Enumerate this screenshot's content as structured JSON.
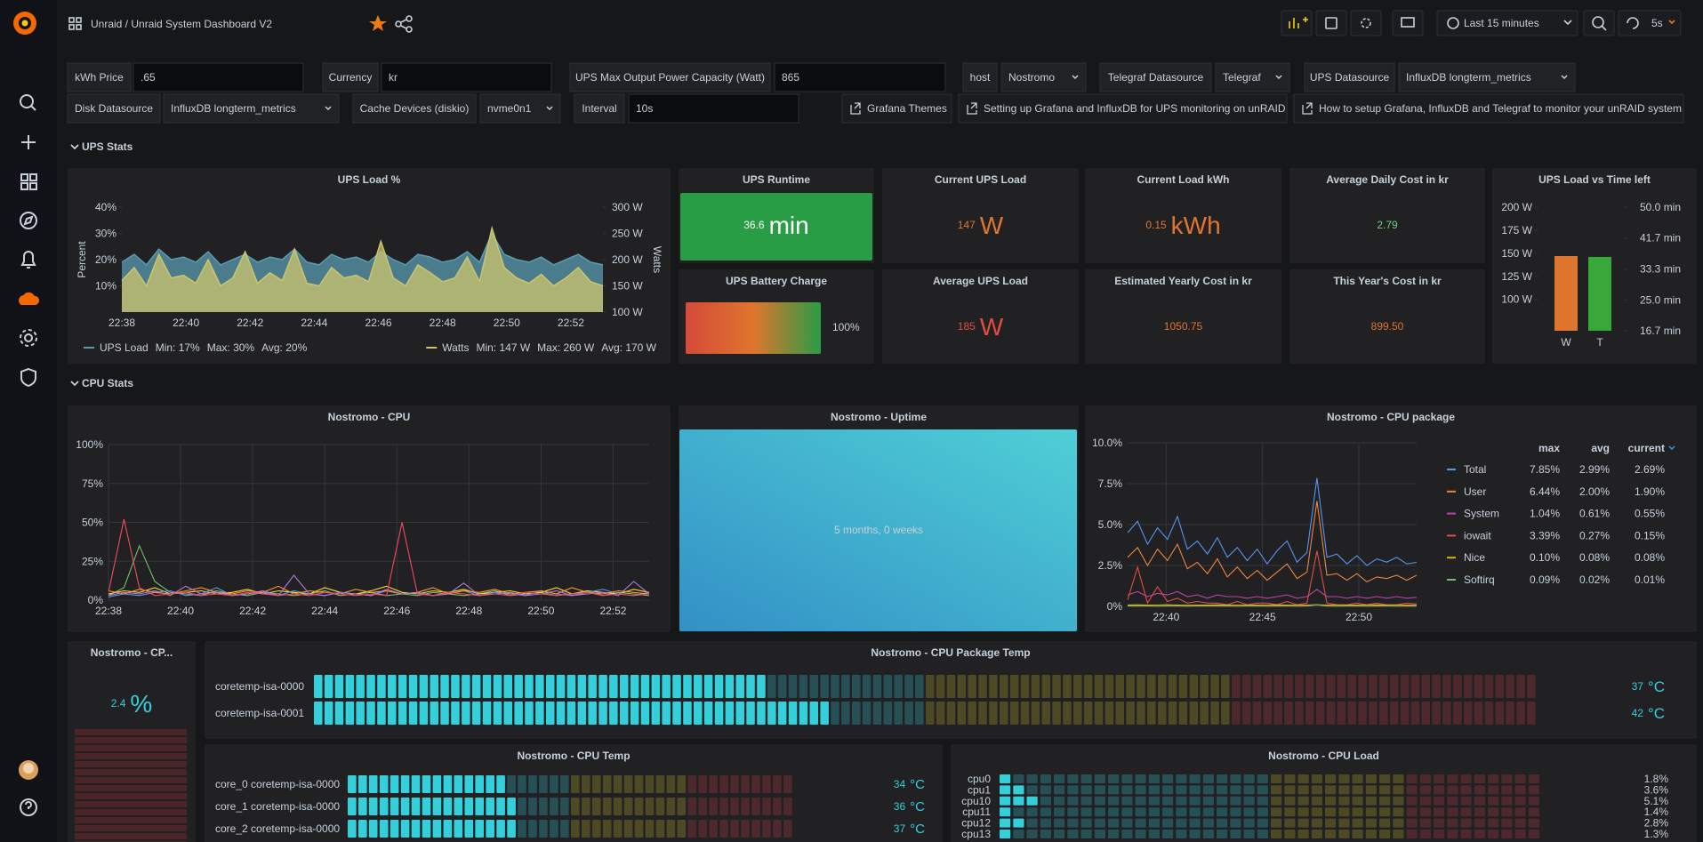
{
  "header": {
    "title": "Unraid / Unraid System Dashboard V2",
    "time_range": "Last 15 minutes",
    "refresh": "5s"
  },
  "variables": [
    {
      "label": "kWh Price",
      "value": ".65"
    },
    {
      "label": "Currency",
      "value": "kr"
    },
    {
      "label": "UPS Max Output Power Capacity (Watt)",
      "value": "865"
    },
    {
      "label": "host",
      "value": "Nostromo"
    },
    {
      "label": "Telegraf Datasource",
      "value": "Telegraf"
    },
    {
      "label": "UPS Datasource",
      "value": "InfluxDB longterm_metrics"
    },
    {
      "label": "Disk Datasource",
      "value": "InfluxDB longterm_metrics"
    },
    {
      "label": "Cache Devices (diskio)",
      "value": "nvme0n1"
    },
    {
      "label": "Interval",
      "value": "10s"
    }
  ],
  "links": [
    "Grafana Themes",
    "Setting up Grafana and InfluxDB for UPS monitoring on unRAID",
    "How to setup Grafana, InfluxDB and Telegraf to monitor your unRAID system"
  ],
  "rows": [
    "UPS Stats",
    "CPU Stats"
  ],
  "ups_load": {
    "type": "line",
    "title": "UPS Load %",
    "y_label": "Percent",
    "y2_label": "Watts",
    "ylim": [
      0,
      40
    ],
    "yticks": [
      {
        "value": 10,
        "label": "10%"
      },
      {
        "value": 20,
        "label": "20%"
      },
      {
        "value": 30,
        "label": "30%"
      },
      {
        "value": 40,
        "label": "40%"
      }
    ],
    "y2lim": [
      100,
      300
    ],
    "y2ticks": [
      {
        "value": 100,
        "label": "100 W"
      },
      {
        "value": 150,
        "label": "150 W"
      },
      {
        "value": 200,
        "label": "200 W"
      },
      {
        "value": 250,
        "label": "250 W"
      },
      {
        "value": 300,
        "label": "300 W"
      }
    ],
    "x_labels": [
      "22:38",
      "22:40",
      "22:42",
      "22:44",
      "22:46",
      "22:48",
      "22:50",
      "22:52"
    ],
    "grid": false,
    "series": [
      {
        "name": "UPS Load",
        "color": "#5a9bb0",
        "stats": [
          "Min: 17%",
          "Max: 30%",
          "Avg: 20%"
        ],
        "values": [
          19,
          22,
          18,
          24,
          20,
          21,
          19,
          23,
          18,
          20,
          22,
          19,
          21,
          20,
          24,
          19,
          18,
          22,
          20,
          21,
          19,
          23,
          20,
          18,
          22,
          21,
          19,
          20,
          23,
          19,
          30,
          22,
          20,
          19,
          21,
          18,
          20,
          22,
          19,
          18
        ]
      },
      {
        "name": "Watts",
        "color": "#cdc56c",
        "axis": "y2",
        "stats": [
          "Min: 147 W",
          "Max: 260 W",
          "Avg: 170 W"
        ],
        "values": [
          160,
          185,
          150,
          210,
          165,
          170,
          155,
          200,
          150,
          165,
          215,
          155,
          175,
          160,
          220,
          155,
          150,
          185,
          165,
          170,
          158,
          235,
          165,
          150,
          190,
          175,
          158,
          165,
          205,
          158,
          260,
          185,
          165,
          155,
          172,
          150,
          165,
          185,
          158,
          150
        ]
      }
    ]
  },
  "stats": [
    {
      "title": "UPS Runtime",
      "value": "36.6",
      "unit": "min",
      "color": "#ffffff",
      "background": "#299c46"
    },
    {
      "title": "Current UPS Load",
      "value": "147",
      "unit": "W",
      "color": "#e0752d"
    },
    {
      "title": "Current Load kWh",
      "value": "0.15",
      "unit": "kWh",
      "color": "#e0752d"
    },
    {
      "title": "Average Daily Cost in kr",
      "value": "2.79",
      "color": "#6ccf7e"
    },
    {
      "title": "Average UPS Load",
      "value": "185",
      "unit": "W",
      "color": "#e24d42"
    },
    {
      "title": "Estimated Yearly Cost in kr",
      "value": "1050.75",
      "color": "#e0752d"
    },
    {
      "title": "This Year's Cost in kr",
      "value": "899.50",
      "color": "#e0752d"
    }
  ],
  "battery": {
    "title": "UPS Battery Charge",
    "value": 100,
    "label": "100%",
    "range": [
      0,
      100
    ]
  },
  "ups_vs_time": {
    "type": "bar",
    "title": "UPS Load vs Time left",
    "categories": [
      "W",
      "T"
    ],
    "values": [
      147,
      36.6
    ],
    "axes": [
      "y",
      "y2"
    ],
    "colors": [
      "#e0752d",
      "#37a839"
    ],
    "ylim": [
      66,
      200
    ],
    "yticks": [
      {
        "value": 100,
        "label": "100 W"
      },
      {
        "value": 125,
        "label": "125 W"
      },
      {
        "value": 150,
        "label": "150 W"
      },
      {
        "value": 175,
        "label": "175 W"
      },
      {
        "value": 200,
        "label": "200 W"
      }
    ],
    "y2lim": [
      16.7,
      50
    ],
    "y2ticks": [
      {
        "value": 16.7,
        "label": "16.7 min"
      },
      {
        "value": 25,
        "label": "25.0 min"
      },
      {
        "value": 33.3,
        "label": "33.3 min"
      },
      {
        "value": 41.7,
        "label": "41.7 min"
      },
      {
        "value": 50,
        "label": "50.0 min"
      }
    ]
  },
  "cpu": {
    "type": "line",
    "title": "Nostromo - CPU",
    "ylim": [
      0,
      100
    ],
    "yticks": [
      {
        "value": 0,
        "label": "0%"
      },
      {
        "value": 25,
        "label": "25%"
      },
      {
        "value": 50,
        "label": "50%"
      },
      {
        "value": 75,
        "label": "75%"
      },
      {
        "value": 100,
        "label": "100%"
      }
    ],
    "x_labels": [
      "22:38",
      "22:40",
      "22:42",
      "22:44",
      "22:46",
      "22:48",
      "22:50",
      "22:52"
    ],
    "grid": true,
    "series": [
      {
        "color": "#73bf69",
        "values": [
          3,
          8,
          35,
          12,
          5,
          4,
          3,
          6,
          4,
          3,
          5,
          4,
          3,
          4,
          6,
          3,
          4,
          5,
          3,
          4,
          3,
          5,
          4,
          3,
          4,
          6,
          3,
          4,
          5,
          3,
          4,
          6,
          3,
          5,
          4,
          3
        ]
      },
      {
        "color": "#fade2a",
        "values": [
          4,
          6,
          5,
          8,
          4,
          5,
          6,
          4,
          5,
          7,
          4,
          6,
          5,
          4,
          8,
          5,
          4,
          6,
          9,
          5,
          4,
          6,
          5,
          7,
          4,
          5,
          6,
          4,
          5,
          8,
          4,
          6,
          5,
          4,
          7,
          5
        ]
      },
      {
        "color": "#5794f2",
        "values": [
          2,
          4,
          3,
          5,
          6,
          3,
          4,
          8,
          3,
          4,
          5,
          3,
          6,
          4,
          3,
          5,
          4,
          3,
          6,
          4,
          5,
          3,
          4,
          6,
          3,
          5,
          4,
          3,
          6,
          4,
          3,
          5,
          7,
          4,
          3,
          5
        ]
      },
      {
        "color": "#ff9830",
        "values": [
          6,
          4,
          7,
          5,
          4,
          6,
          8,
          5,
          4,
          6,
          5,
          9,
          4,
          6,
          5,
          4,
          7,
          5,
          6,
          4,
          5,
          8,
          4,
          6,
          5,
          7,
          4,
          5,
          6,
          4,
          8,
          5,
          4,
          6,
          5,
          4
        ]
      },
      {
        "color": "#b877d9",
        "values": [
          3,
          5,
          4,
          6,
          3,
          9,
          4,
          5,
          3,
          4,
          6,
          3,
          16,
          4,
          3,
          5,
          4,
          3,
          7,
          4,
          5,
          3,
          4,
          11,
          3,
          4,
          5,
          3,
          4,
          6,
          3,
          4,
          5,
          3,
          12,
          4
        ]
      },
      {
        "color": "#f2495c",
        "values": [
          5,
          52,
          8,
          3,
          4,
          5,
          3,
          4,
          3,
          5,
          4,
          3,
          4,
          3,
          5,
          4,
          3,
          4,
          3,
          50,
          4,
          3,
          5,
          4,
          3,
          4,
          3,
          5,
          4,
          3,
          4,
          5,
          3,
          4,
          3,
          4
        ]
      }
    ]
  },
  "uptime": {
    "title": "Nostromo - Uptime",
    "value": "5 months, 0 weeks"
  },
  "cpu_package": {
    "type": "line",
    "title": "Nostromo - CPU package",
    "ylim": [
      0,
      10
    ],
    "yticks": [
      {
        "value": 0,
        "label": "0%"
      },
      {
        "value": 2.5,
        "label": "2.5%"
      },
      {
        "value": 5,
        "label": "5.0%"
      },
      {
        "value": 7.5,
        "label": "7.5%"
      },
      {
        "value": 10,
        "label": "10.0%"
      }
    ],
    "x_labels": [
      "22:40",
      "22:45",
      "22:50"
    ],
    "grid": true,
    "legend_columns": [
      "max",
      "avg",
      "current"
    ],
    "series": [
      {
        "name": "Total",
        "color": "#5794f2",
        "stats": [
          "7.85%",
          "2.99%",
          "2.69%"
        ],
        "values": [
          4.5,
          5.2,
          3.8,
          4.8,
          4.1,
          5.5,
          3.5,
          4.0,
          3.2,
          4.2,
          3.0,
          3.6,
          2.8,
          3.5,
          2.6,
          3.4,
          4.0,
          2.7,
          3.3,
          7.85,
          3.0,
          3.2,
          2.6,
          3.1,
          2.5,
          2.9,
          2.7,
          3.0,
          2.6,
          2.69
        ]
      },
      {
        "name": "User",
        "color": "#ef843c",
        "stats": [
          "6.44%",
          "2.00%",
          "1.90%"
        ],
        "values": [
          3.0,
          3.6,
          2.5,
          3.5,
          2.8,
          3.8,
          2.3,
          2.7,
          2.0,
          2.9,
          1.8,
          2.4,
          1.7,
          2.2,
          1.6,
          2.1,
          2.6,
          1.7,
          2.1,
          6.44,
          1.9,
          2.0,
          1.6,
          2.0,
          1.5,
          1.8,
          1.7,
          1.9,
          1.6,
          1.9
        ]
      },
      {
        "name": "System",
        "color": "#ba43a9",
        "stats": [
          "1.04%",
          "0.61%",
          "0.55%"
        ],
        "values": [
          0.7,
          0.9,
          0.6,
          0.8,
          0.7,
          0.9,
          0.6,
          0.7,
          0.5,
          0.7,
          0.6,
          0.6,
          0.5,
          0.6,
          0.5,
          0.6,
          0.7,
          0.5,
          0.6,
          1.04,
          0.6,
          0.6,
          0.5,
          0.6,
          0.5,
          0.6,
          0.5,
          0.6,
          0.5,
          0.55
        ]
      },
      {
        "name": "iowait",
        "color": "#e24d42",
        "stats": [
          "3.39%",
          "0.27%",
          "0.15%"
        ],
        "values": [
          0.4,
          2.4,
          0.2,
          1.2,
          0.3,
          0.5,
          0.2,
          0.3,
          0.2,
          0.2,
          0.1,
          0.3,
          0.1,
          0.2,
          0.2,
          0.1,
          0.3,
          0.1,
          0.2,
          3.39,
          0.2,
          0.1,
          0.1,
          0.2,
          0.1,
          0.2,
          0.1,
          0.1,
          0.2,
          0.15
        ]
      },
      {
        "name": "Nice",
        "color": "#e5ac0e",
        "stats": [
          "0.10%",
          "0.08%",
          "0.08%"
        ],
        "values": [
          0.08,
          0.09,
          0.08,
          0.08,
          0.1,
          0.08,
          0.07,
          0.08,
          0.08,
          0.09,
          0.08,
          0.08,
          0.07,
          0.08,
          0.08,
          0.09,
          0.08,
          0.08,
          0.08,
          0.1,
          0.08,
          0.08,
          0.07,
          0.08,
          0.08,
          0.09,
          0.08,
          0.08,
          0.08,
          0.08
        ]
      },
      {
        "name": "Softirq",
        "color": "#7eb26d",
        "stats": [
          "0.09%",
          "0.02%",
          "0.01%"
        ],
        "values": [
          0.02,
          0.03,
          0.02,
          0.01,
          0.02,
          0.02,
          0.01,
          0.02,
          0.02,
          0.03,
          0.02,
          0.01,
          0.02,
          0.02,
          0.01,
          0.02,
          0.02,
          0.01,
          0.02,
          0.09,
          0.02,
          0.01,
          0.02,
          0.02,
          0.01,
          0.02,
          0.02,
          0.01,
          0.02,
          0.01
        ]
      }
    ]
  },
  "cpu_percent": {
    "title": "Nostromo - CP...",
    "value": "2.4",
    "unit": "%"
  },
  "package_temp": {
    "title": "Nostromo - CPU Package Temp",
    "range": [
      0,
      100
    ],
    "unit": "°C",
    "thresholds": [
      {
        "value": 0,
        "color": "#33d0dc"
      },
      {
        "value": 50,
        "color": "#c9b52a"
      },
      {
        "value": 75,
        "color": "#c4404a"
      }
    ],
    "items": [
      {
        "name": "coretemp-isa-0000",
        "value": 37
      },
      {
        "name": "coretemp-isa-0001",
        "value": 42
      }
    ]
  },
  "cpu_temp": {
    "title": "Nostromo - CPU Temp",
    "range": [
      0,
      100
    ],
    "unit": "°C",
    "thresholds": [
      {
        "value": 0,
        "color": "#33d0dc"
      },
      {
        "value": 50,
        "color": "#c9b52a"
      },
      {
        "value": 75,
        "color": "#c4404a"
      }
    ],
    "items": [
      {
        "name": "core_0 coretemp-isa-0000",
        "value": 34
      },
      {
        "name": "core_1 coretemp-isa-0000",
        "value": 36
      },
      {
        "name": "core_2 coretemp-isa-0000",
        "value": 37
      }
    ]
  },
  "cpu_load": {
    "title": "Nostromo - CPU Load",
    "range": [
      0,
      100
    ],
    "thresholds": [
      {
        "value": 0,
        "color": "#33d0dc"
      },
      {
        "value": 50,
        "color": "#c9b52a"
      },
      {
        "value": 75,
        "color": "#c4404a"
      }
    ],
    "items": [
      {
        "name": "cpu0",
        "value": 1.8,
        "label": "1.8%"
      },
      {
        "name": "cpu1",
        "value": 3.6,
        "label": "3.6%"
      },
      {
        "name": "cpu10",
        "value": 5.1,
        "label": "5.1%"
      },
      {
        "name": "cpu11",
        "value": 1.4,
        "label": "1.4%"
      },
      {
        "name": "cpu12",
        "value": 2.8,
        "label": "2.8%"
      },
      {
        "name": "cpu13",
        "value": 1.3,
        "label": "1.3%"
      }
    ]
  }
}
